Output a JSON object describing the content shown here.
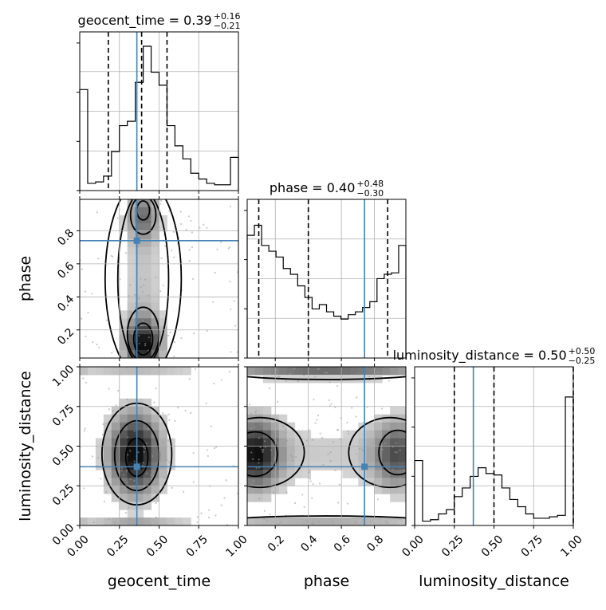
{
  "chart_data": {
    "type": "corner",
    "parameters": [
      "geocent_time",
      "phase",
      "luminosity_distance"
    ],
    "axis_labels": {
      "geocent_time": "geocent_time",
      "phase": "phase",
      "luminosity_distance": "luminosity_distance"
    },
    "titles": {
      "geocent_time": {
        "name": "geocent_time",
        "value": "0.39",
        "plus": "+0.16",
        "minus": "−0.21"
      },
      "phase": {
        "name": "phase",
        "value": "0.40",
        "plus": "+0.48",
        "minus": "−0.30"
      },
      "luminosity_distance": {
        "name": "luminosity_distance",
        "value": "0.50",
        "plus": "+0.50",
        "minus": "−0.25"
      }
    },
    "ranges": {
      "geocent_time": [
        0,
        1
      ],
      "phase": [
        0.03,
        0.99
      ],
      "luminosity_distance": [
        0,
        1
      ]
    },
    "ticks": {
      "geocent_time": {
        "values": [
          0.0,
          0.25,
          0.5,
          0.75,
          1.0
        ],
        "labels": [
          "0.00",
          "0.25",
          "0.50",
          "0.75",
          "1.00"
        ]
      },
      "phase": {
        "values": [
          0.2,
          0.4,
          0.6,
          0.8
        ],
        "labels": [
          "0.2",
          "0.4",
          "0.6",
          "0.8"
        ]
      },
      "luminosity_distance": {
        "values": [
          0.0,
          0.25,
          0.5,
          0.75,
          1.0
        ],
        "labels": [
          "0.00",
          "0.25",
          "0.50",
          "0.75",
          "1.00"
        ]
      }
    },
    "truths": {
      "geocent_time": 0.36,
      "phase": 0.74,
      "luminosity_distance": 0.37
    },
    "quantiles": {
      "geocent_time": [
        0.18,
        0.39,
        0.55
      ],
      "phase": [
        0.1,
        0.4,
        0.88
      ],
      "luminosity_distance": [
        0.25,
        0.5,
        1.0
      ]
    },
    "histograms": {
      "geocent_time": [
        0.7,
        0.05,
        0.06,
        0.1,
        0.27,
        0.45,
        0.48,
        0.75,
        1.0,
        0.82,
        0.73,
        0.45,
        0.31,
        0.22,
        0.12,
        0.08,
        0.05,
        0.04,
        0.04,
        0.23
      ],
      "phase": [
        0.85,
        0.92,
        0.78,
        0.74,
        0.7,
        0.62,
        0.58,
        0.5,
        0.42,
        0.34,
        0.37,
        0.32,
        0.29,
        0.27,
        0.3,
        0.32,
        0.35,
        0.39,
        0.55,
        0.58,
        0.59,
        0.78
      ],
      "luminosity_distance": [
        0.45,
        0.03,
        0.04,
        0.08,
        0.11,
        0.2,
        0.26,
        0.34,
        0.4,
        0.36,
        0.35,
        0.26,
        0.18,
        0.13,
        0.08,
        0.05,
        0.05,
        0.06,
        0.07,
        0.89
      ]
    },
    "grid": true
  }
}
